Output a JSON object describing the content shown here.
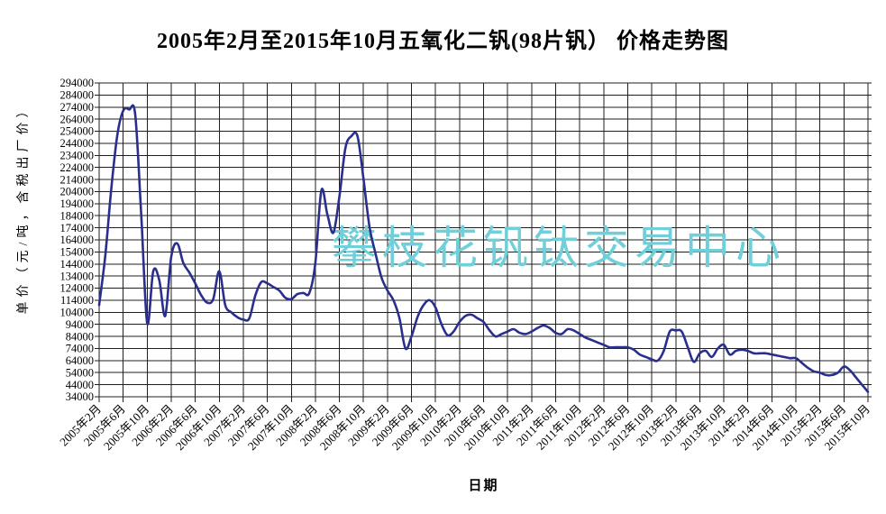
{
  "watermark": "攀枝花钒钛交易中心",
  "chart_data": {
    "type": "line",
    "title": "2005年2月至2015年10月五氧化二钒(98片钒） 价格走势图",
    "xlabel": "日期",
    "ylabel": "单价（元/吨，含税出厂价）",
    "ylim": [
      34000,
      294000
    ],
    "y_tick_step": 10000,
    "grid": true,
    "legend": false,
    "line_color": "#2a2f8e",
    "watermark_color": "#70cfd9",
    "y_tick_labels": [
      "294000",
      "284000",
      "274000",
      "264000",
      "254000",
      "244000",
      "234000",
      "224000",
      "214000",
      "204000",
      "194000",
      "184000",
      "174000",
      "164000",
      "154000",
      "144000",
      "134000",
      "124000",
      "114000",
      "104000",
      "94000",
      "84000",
      "74000",
      "64000",
      "54000",
      "44000",
      "34000"
    ],
    "x_tick_labels": [
      "2005年2月",
      "2005年6月",
      "2005年10月",
      "2006年2月",
      "2006年6月",
      "2006年10月",
      "2007年2月",
      "2007年6月",
      "2007年10月",
      "2008年2月",
      "2008年6月",
      "2008年10月",
      "2009年2月",
      "2009年6月",
      "2009年10月",
      "2010年2月",
      "2010年6月",
      "2010年10月",
      "2011年2月",
      "2011年6月",
      "2011年10月",
      "2012年2月",
      "2012年6月",
      "2012年10月",
      "2013年2月",
      "2013年6月",
      "2013年10月",
      "2014年2月",
      "2014年6月",
      "2014年10月",
      "2015年2月",
      "2015年6月",
      "2015年10月"
    ],
    "series": [
      {
        "name": "五氧化二钒(98片钒)价格",
        "unit": "元/吨",
        "start": "2005-02",
        "end": "2015-10",
        "interval": "monthly",
        "values": [
          110000,
          150000,
          205000,
          250000,
          271000,
          272000,
          268000,
          186000,
          95000,
          138000,
          131000,
          101000,
          150000,
          161000,
          145000,
          137000,
          128000,
          118000,
          112000,
          115000,
          138000,
          110000,
          104000,
          100000,
          98000,
          99000,
          118000,
          129000,
          128000,
          125000,
          122000,
          116000,
          115000,
          119000,
          120000,
          120000,
          145000,
          205000,
          185000,
          170000,
          200000,
          240000,
          250000,
          250000,
          215000,
          175000,
          153000,
          133000,
          122000,
          114000,
          99000,
          74000,
          84000,
          100000,
          110000,
          114000,
          108000,
          94000,
          85000,
          88000,
          96000,
          101000,
          102000,
          99000,
          96000,
          89000,
          84000,
          86000,
          88000,
          90000,
          87000,
          86000,
          88000,
          91000,
          93000,
          91000,
          87000,
          86000,
          90000,
          89000,
          86000,
          83000,
          81000,
          79000,
          77000,
          75000,
          75000,
          75000,
          75000,
          73000,
          69000,
          67000,
          65000,
          64000,
          72000,
          88000,
          89000,
          88000,
          75000,
          63000,
          70000,
          72000,
          67000,
          74000,
          77000,
          69000,
          72000,
          73000,
          72000,
          70000,
          70000,
          70000,
          69000,
          68000,
          67000,
          66000,
          66000,
          62000,
          58000,
          55000,
          54000,
          52000,
          52000,
          54000,
          59000,
          56000,
          50000,
          44000,
          38000
        ]
      }
    ]
  }
}
